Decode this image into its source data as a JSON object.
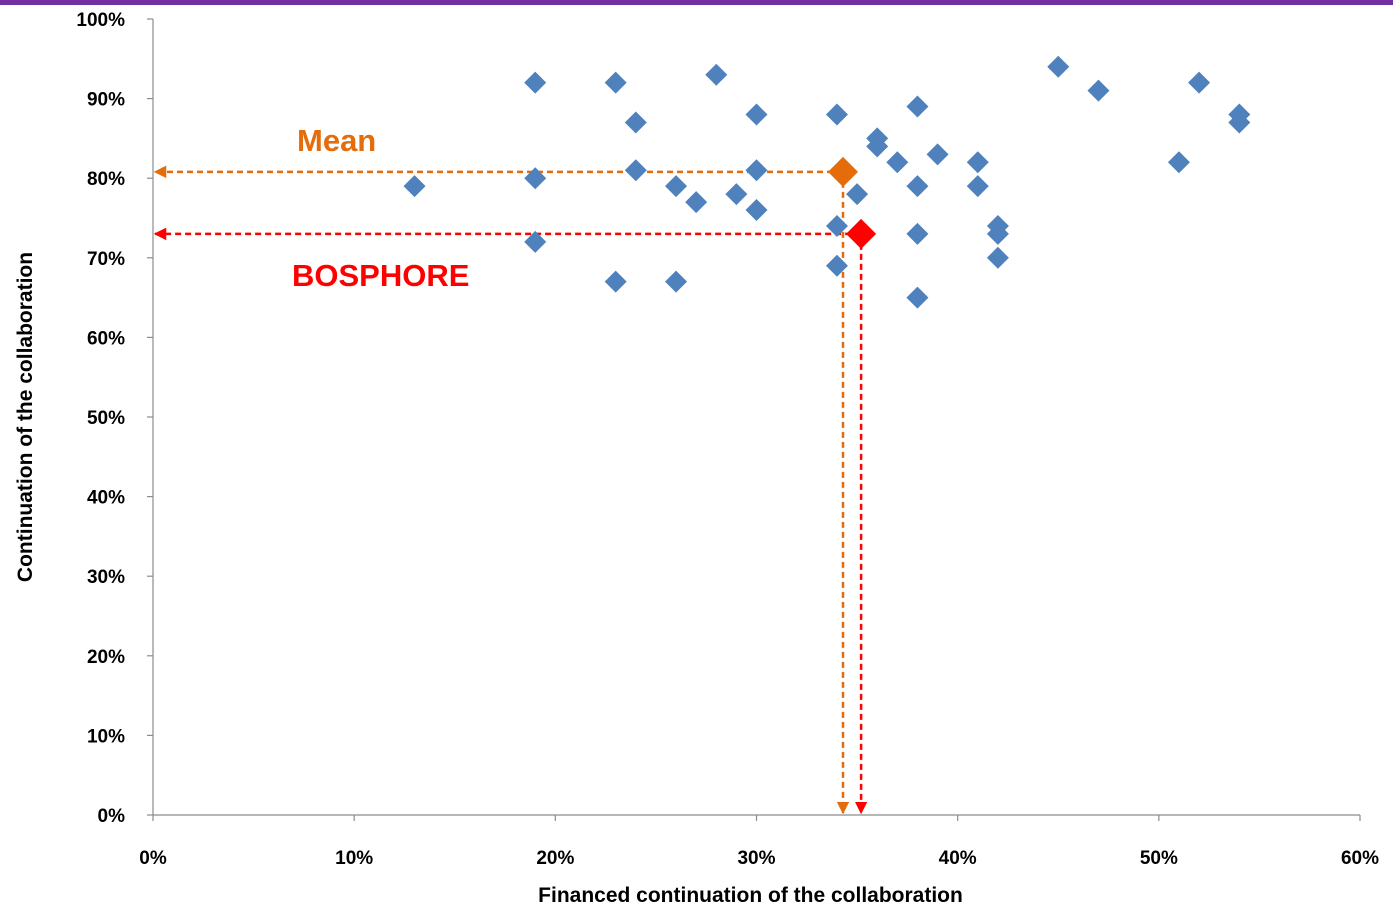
{
  "chart_data": {
    "type": "scatter",
    "xlabel": "Financed continuation of the collaboration",
    "ylabel": "Continuation of the collaboration",
    "xlim": [
      0,
      60
    ],
    "ylim": [
      0,
      100
    ],
    "x_ticks": [
      "0%",
      "10%",
      "20%",
      "30%",
      "40%",
      "50%",
      "60%"
    ],
    "y_ticks": [
      "0%",
      "10%",
      "20%",
      "30%",
      "40%",
      "50%",
      "60%",
      "70%",
      "80%",
      "90%",
      "100%"
    ],
    "grid": false,
    "series": [
      {
        "color": "#4f81bd",
        "points": [
          [
            13,
            79
          ],
          [
            19,
            92
          ],
          [
            19,
            80
          ],
          [
            19,
            72
          ],
          [
            23,
            92
          ],
          [
            23,
            67
          ],
          [
            24,
            87
          ],
          [
            24,
            81
          ],
          [
            26,
            79
          ],
          [
            26,
            67
          ],
          [
            27,
            77
          ],
          [
            28,
            93
          ],
          [
            29,
            78
          ],
          [
            30,
            88
          ],
          [
            30,
            81
          ],
          [
            30,
            76
          ],
          [
            34,
            88
          ],
          [
            34,
            74
          ],
          [
            34,
            69
          ],
          [
            35,
            78
          ],
          [
            36,
            85
          ],
          [
            36,
            84
          ],
          [
            37,
            82
          ],
          [
            38,
            89
          ],
          [
            38,
            79
          ],
          [
            38,
            73
          ],
          [
            38,
            65
          ],
          [
            39,
            83
          ],
          [
            41,
            82
          ],
          [
            41,
            79
          ],
          [
            42,
            74
          ],
          [
            42,
            73
          ],
          [
            42,
            70
          ],
          [
            45,
            94
          ],
          [
            47,
            91
          ],
          [
            51,
            82
          ],
          [
            52,
            92
          ],
          [
            54,
            88
          ],
          [
            54,
            87
          ]
        ]
      }
    ],
    "highlights": [
      {
        "label": "Mean",
        "x": 34.3,
        "y": 80.8,
        "color": "#e46c0a"
      },
      {
        "label": "BOSPHORE",
        "x": 35.2,
        "y": 73.0,
        "color": "#ff0000"
      }
    ]
  }
}
